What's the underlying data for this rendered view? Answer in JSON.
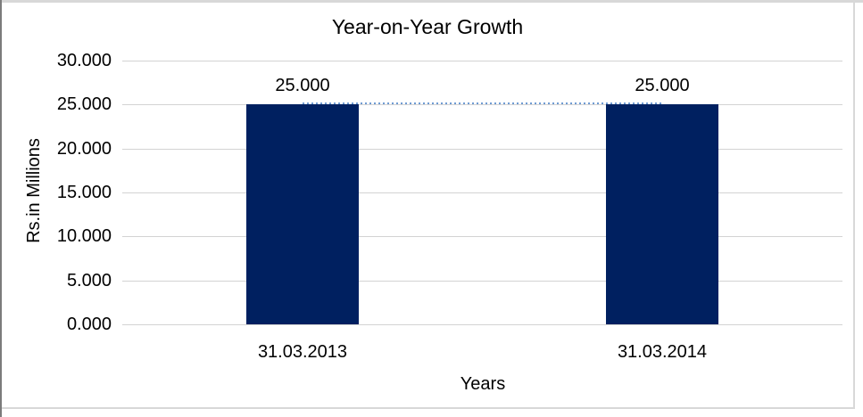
{
  "chart_data": {
    "type": "bar",
    "title": "Year-on-Year Growth",
    "xlabel": "Years",
    "ylabel": "Rs.in Millions",
    "categories": [
      "31.03.2013",
      "31.03.2014"
    ],
    "series": [
      {
        "name": "bars",
        "type": "bar",
        "values": [
          25.0,
          25.0
        ],
        "data_labels": [
          "25.000",
          "25.000"
        ],
        "color": "#002060"
      },
      {
        "name": "connector",
        "type": "line",
        "values": [
          25.0,
          25.0
        ],
        "style": "dotted",
        "color": "#6f9bd2"
      }
    ],
    "ylim": [
      0,
      30
    ],
    "ytick_step": 5,
    "yticks": [
      "0.000",
      "5.000",
      "10.000",
      "15.000",
      "20.000",
      "25.000",
      "30.000"
    ],
    "grid": true,
    "legend": "none",
    "colors": {
      "bar_fill": "#002060",
      "dotted_line": "#6f9bd2",
      "gridline": "#d3d3d3",
      "text": "#000000",
      "frame_light": "#d8d8d8",
      "frame_dark": "#7b7b7b"
    }
  }
}
